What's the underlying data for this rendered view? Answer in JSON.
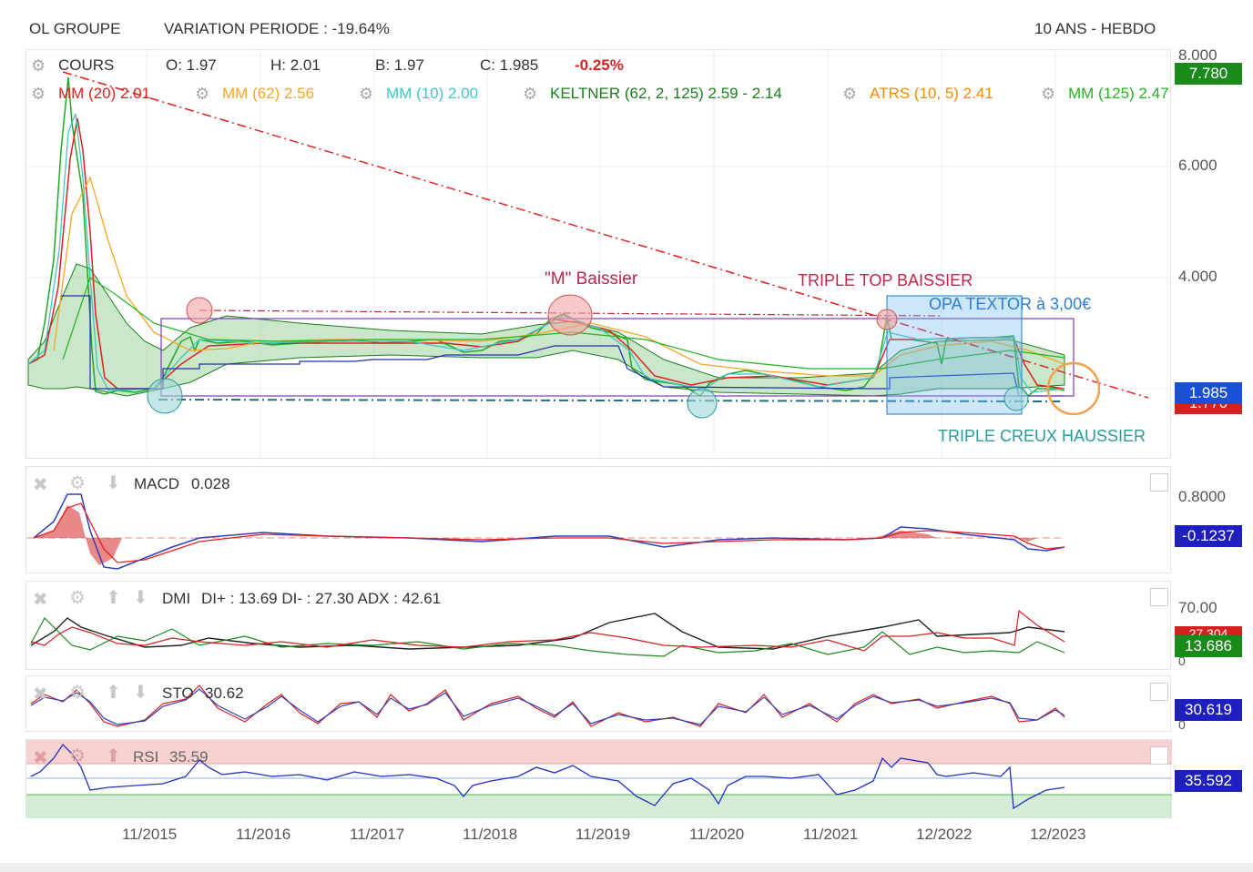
{
  "header": {
    "title": "OL GROUPE",
    "variation": "VARIATION PERIODE : -19.64%",
    "period": "10 ANS - HEBDO"
  },
  "price_panel": {
    "cours_label": "COURS",
    "open": "O: 1.97",
    "high": "H: 2.01",
    "low": "B: 1.97",
    "close": "C: 1.985",
    "change": "-0.25%",
    "indicators": [
      {
        "label": "MM (20) 2.01",
        "color": "#e02020"
      },
      {
        "label": "MM (62) 2.56",
        "color": "#f5a623"
      },
      {
        "label": "MM (10) 2.00",
        "color": "#3ec7c7"
      },
      {
        "label": "KELTNER (62, 2, 125) 2.59 - 2.14",
        "color": "#1a7f1a"
      },
      {
        "label": "ATRS (10, 5) 2.41",
        "color": "#f08c00"
      },
      {
        "label": "MM (125) 2.47",
        "color": "#21b421"
      }
    ],
    "annotations": {
      "m_baissier": "\"M\" Baissier",
      "triple_top": "TRIPLE TOP BAISSIER",
      "opa": "OPA TEXTOR à 3,00€",
      "triple_creux": "TRIPLE CREUX HAUSSIER"
    },
    "axis_ticks": [
      "8.000",
      "6.000",
      "4.000"
    ],
    "badge_high": "7.780",
    "badge_last": "1.985",
    "badge_hidden": "1.770"
  },
  "macd_panel": {
    "label": "MACD",
    "value": "0.028",
    "axis": "0.8000",
    "badge": "-0.1237"
  },
  "dmi_panel": {
    "label": "DMI",
    "value": "DI+ : 13.69 DI- : 27.30 ADX : 42.61",
    "axis": "70.00",
    "axis_zero": "0",
    "badge_hidden": "27.304",
    "badge": "13.686"
  },
  "sto_panel": {
    "label": "STO",
    "value": "30.62",
    "axis_zero": "0",
    "badge": "30.619"
  },
  "rsi_panel": {
    "label": "RSI",
    "value": "35.59",
    "badge": "35.592"
  },
  "x_axis": [
    "11/2015",
    "11/2016",
    "11/2017",
    "11/2018",
    "11/2019",
    "11/2020",
    "11/2021",
    "12/2022",
    "12/2023"
  ],
  "colors": {
    "up": "#21a821",
    "down": "#d62020",
    "keltner_fill": "#9fd49f",
    "badge_green": "#1a8a1a",
    "badge_blue": "#1a4fd6",
    "badge_red": "#d62020",
    "badge_navy": "#1f1fbf",
    "opa_box": "#6fb6f0"
  },
  "chart_data": {
    "type": "line",
    "title": "OL GROUPE",
    "x": [
      "11/2015",
      "11/2016",
      "11/2017",
      "11/2018",
      "11/2019",
      "11/2020",
      "11/2021",
      "12/2022",
      "12/2023"
    ],
    "ylim": [
      1.0,
      8.0
    ],
    "series": [
      {
        "name": "COURS",
        "values": [
          1.9,
          3.0,
          2.9,
          2.9,
          3.1,
          1.9,
          1.9,
          3.0,
          2.0
        ]
      }
    ]
  }
}
